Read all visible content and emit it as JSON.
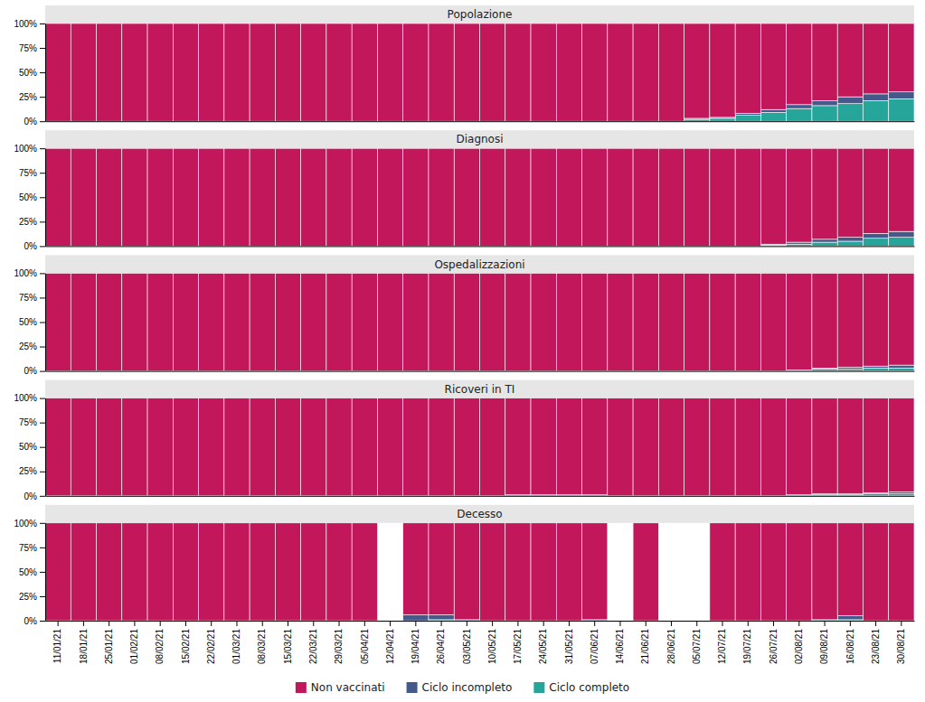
{
  "chart_data": [
    {
      "type": "bar",
      "title": "Popolazione",
      "stacked": true,
      "tick_labels": "y",
      "categories": [
        "11/01/21",
        "18/01/21",
        "25/01/21",
        "01/02/21",
        "08/02/21",
        "15/02/21",
        "22/02/21",
        "01/03/21",
        "08/03/21",
        "15/03/21",
        "22/03/21",
        "29/03/21",
        "05/04/21",
        "12/04/21",
        "19/04/21",
        "26/04/21",
        "03/05/21",
        "10/05/21",
        "17/05/21",
        "24/05/21",
        "31/05/21",
        "07/06/21",
        "14/06/21",
        "21/06/21",
        "28/06/21",
        "05/07/21",
        "12/07/21",
        "19/07/21",
        "26/07/21",
        "02/08/21",
        "09/08/21",
        "16/08/21",
        "23/08/21",
        "30/08/21"
      ],
      "series": [
        {
          "name": "Ciclo completo",
          "color": "#26A69A",
          "values": [
            0,
            0,
            0,
            0,
            0,
            0,
            0,
            0,
            0,
            0,
            0,
            0,
            0,
            0,
            0,
            0,
            0,
            0,
            0,
            0,
            0,
            0,
            0,
            0,
            0,
            2,
            3,
            6,
            9,
            13,
            16,
            18,
            21,
            23
          ]
        },
        {
          "name": "Ciclo incompleto",
          "color": "#455A8A",
          "values": [
            0,
            0,
            0,
            0,
            0,
            0,
            0,
            0,
            0,
            0,
            0,
            0,
            0,
            0,
            0,
            0,
            0,
            0,
            0,
            0,
            0,
            0,
            0,
            0,
            0,
            1,
            1,
            2,
            3,
            4,
            5,
            7,
            7,
            7
          ]
        },
        {
          "name": "Non vaccinati",
          "color": "#C2185B",
          "values": [
            100,
            100,
            100,
            100,
            100,
            100,
            100,
            100,
            100,
            100,
            100,
            100,
            100,
            100,
            100,
            100,
            100,
            100,
            100,
            100,
            100,
            100,
            100,
            100,
            100,
            97,
            96,
            92,
            88,
            83,
            79,
            75,
            72,
            70
          ]
        }
      ],
      "ylim": [
        0,
        100
      ],
      "yticks": [
        {
          "value": 0,
          "label": "0%"
        },
        {
          "value": 25,
          "label": "25%"
        },
        {
          "value": 50,
          "label": "50%"
        },
        {
          "value": 75,
          "label": "75%"
        },
        {
          "value": 100,
          "label": "100%"
        }
      ]
    },
    {
      "type": "bar",
      "title": "Diagnosi",
      "stacked": true,
      "tick_labels": "y",
      "categories": [
        "11/01/21",
        "18/01/21",
        "25/01/21",
        "01/02/21",
        "08/02/21",
        "15/02/21",
        "22/02/21",
        "01/03/21",
        "08/03/21",
        "15/03/21",
        "22/03/21",
        "29/03/21",
        "05/04/21",
        "12/04/21",
        "19/04/21",
        "26/04/21",
        "03/05/21",
        "10/05/21",
        "17/05/21",
        "24/05/21",
        "31/05/21",
        "07/06/21",
        "14/06/21",
        "21/06/21",
        "28/06/21",
        "05/07/21",
        "12/07/21",
        "19/07/21",
        "26/07/21",
        "02/08/21",
        "09/08/21",
        "16/08/21",
        "23/08/21",
        "30/08/21"
      ],
      "series": [
        {
          "name": "Ciclo completo",
          "color": "#26A69A",
          "values": [
            0,
            0,
            0,
            0,
            0,
            0,
            0,
            0,
            0,
            0,
            0,
            0,
            0,
            0,
            0,
            0,
            0,
            0,
            0,
            0,
            0,
            0,
            0,
            0,
            0,
            0,
            0,
            0,
            1,
            2,
            4,
            5,
            8,
            9
          ]
        },
        {
          "name": "Ciclo incompleto",
          "color": "#455A8A",
          "values": [
            0,
            0,
            0,
            0,
            0,
            0,
            0,
            0,
            0,
            0,
            0,
            0,
            0,
            0,
            0,
            0,
            0,
            0,
            0,
            0,
            0,
            0,
            0,
            0,
            0,
            0,
            0,
            0,
            1,
            2,
            3,
            4,
            5,
            6
          ]
        },
        {
          "name": "Non vaccinati",
          "color": "#C2185B",
          "values": [
            100,
            100,
            100,
            100,
            100,
            100,
            100,
            100,
            100,
            100,
            100,
            100,
            100,
            100,
            100,
            100,
            100,
            100,
            100,
            100,
            100,
            100,
            100,
            100,
            100,
            100,
            100,
            100,
            98,
            96,
            93,
            91,
            87,
            85
          ]
        }
      ],
      "ylim": [
        0,
        100
      ],
      "yticks": [
        {
          "value": 0,
          "label": "0%"
        },
        {
          "value": 25,
          "label": "25%"
        },
        {
          "value": 50,
          "label": "50%"
        },
        {
          "value": 75,
          "label": "75%"
        },
        {
          "value": 100,
          "label": "100%"
        }
      ]
    },
    {
      "type": "bar",
      "title": "Ospedalizzazioni",
      "stacked": true,
      "tick_labels": "y",
      "categories": [
        "11/01/21",
        "18/01/21",
        "25/01/21",
        "01/02/21",
        "08/02/21",
        "15/02/21",
        "22/02/21",
        "01/03/21",
        "08/03/21",
        "15/03/21",
        "22/03/21",
        "29/03/21",
        "05/04/21",
        "12/04/21",
        "19/04/21",
        "26/04/21",
        "03/05/21",
        "10/05/21",
        "17/05/21",
        "24/05/21",
        "31/05/21",
        "07/06/21",
        "14/06/21",
        "21/06/21",
        "28/06/21",
        "05/07/21",
        "12/07/21",
        "19/07/21",
        "26/07/21",
        "02/08/21",
        "09/08/21",
        "16/08/21",
        "23/08/21",
        "30/08/21"
      ],
      "series": [
        {
          "name": "Ciclo completo",
          "color": "#26A69A",
          "values": [
            0,
            0,
            0,
            0,
            0,
            0,
            0,
            0,
            0,
            0,
            0,
            0,
            0,
            0,
            0,
            0,
            0,
            0,
            0,
            0,
            0,
            0,
            0,
            0,
            0,
            0,
            0,
            0,
            0,
            1,
            2,
            2,
            3,
            3
          ]
        },
        {
          "name": "Ciclo incompleto",
          "color": "#455A8A",
          "values": [
            0,
            0,
            0,
            0,
            0,
            0,
            0,
            0,
            0,
            0,
            0,
            0,
            0,
            0,
            0,
            0,
            0,
            0,
            0,
            0,
            0,
            0,
            0,
            0,
            0,
            0,
            0,
            0,
            0,
            0,
            1,
            2,
            2,
            3
          ]
        },
        {
          "name": "Non vaccinati",
          "color": "#C2185B",
          "values": [
            100,
            100,
            100,
            100,
            100,
            100,
            100,
            100,
            100,
            100,
            100,
            100,
            100,
            100,
            100,
            100,
            100,
            100,
            100,
            100,
            100,
            100,
            100,
            100,
            100,
            100,
            100,
            100,
            100,
            99,
            97,
            96,
            95,
            94
          ]
        }
      ],
      "ylim": [
        0,
        100
      ],
      "yticks": [
        {
          "value": 0,
          "label": "0%"
        },
        {
          "value": 25,
          "label": "25%"
        },
        {
          "value": 50,
          "label": "50%"
        },
        {
          "value": 75,
          "label": "75%"
        },
        {
          "value": 100,
          "label": "100%"
        }
      ]
    },
    {
      "type": "bar",
      "title": "Ricoveri in TI",
      "stacked": true,
      "tick_labels": "y",
      "categories": [
        "11/01/21",
        "18/01/21",
        "25/01/21",
        "01/02/21",
        "08/02/21",
        "15/02/21",
        "22/02/21",
        "01/03/21",
        "08/03/21",
        "15/03/21",
        "22/03/21",
        "29/03/21",
        "05/04/21",
        "12/04/21",
        "19/04/21",
        "26/04/21",
        "03/05/21",
        "10/05/21",
        "17/05/21",
        "24/05/21",
        "31/05/21",
        "07/06/21",
        "14/06/21",
        "21/06/21",
        "28/06/21",
        "05/07/21",
        "12/07/21",
        "19/07/21",
        "26/07/21",
        "02/08/21",
        "09/08/21",
        "16/08/21",
        "23/08/21",
        "30/08/21"
      ],
      "series": [
        {
          "name": "Ciclo completo",
          "color": "#26A69A",
          "values": [
            0,
            0,
            0,
            0,
            0,
            0,
            0,
            0,
            0,
            0,
            0,
            0,
            0,
            0,
            0,
            0,
            0,
            0,
            0,
            0,
            0,
            0,
            0,
            0,
            0,
            0,
            0,
            0,
            0,
            1,
            1,
            1,
            2,
            2
          ]
        },
        {
          "name": "Ciclo incompleto",
          "color": "#455A8A",
          "values": [
            0,
            0,
            0,
            0,
            0,
            0,
            0,
            0,
            0,
            0,
            0,
            0,
            0,
            0,
            0,
            0,
            0,
            0,
            1,
            1,
            1,
            1,
            0,
            0,
            0,
            0,
            0,
            0,
            0,
            0,
            1,
            1,
            1,
            2
          ]
        },
        {
          "name": "Non vaccinati",
          "color": "#C2185B",
          "values": [
            100,
            100,
            100,
            100,
            100,
            100,
            100,
            100,
            100,
            100,
            100,
            100,
            100,
            100,
            100,
            100,
            100,
            100,
            99,
            99,
            99,
            99,
            100,
            100,
            100,
            100,
            100,
            100,
            100,
            99,
            98,
            98,
            97,
            96
          ]
        }
      ],
      "ylim": [
        0,
        100
      ],
      "yticks": [
        {
          "value": 0,
          "label": "0%"
        },
        {
          "value": 25,
          "label": "25%"
        },
        {
          "value": 50,
          "label": "50%"
        },
        {
          "value": 75,
          "label": "75%"
        },
        {
          "value": 100,
          "label": "100%"
        }
      ]
    },
    {
      "type": "bar",
      "title": "Decesso",
      "stacked": true,
      "legend": "bottom",
      "categories": [
        "11/01/21",
        "18/01/21",
        "25/01/21",
        "01/02/21",
        "08/02/21",
        "15/02/21",
        "22/02/21",
        "01/03/21",
        "08/03/21",
        "15/03/21",
        "22/03/21",
        "29/03/21",
        "05/04/21",
        "12/04/21",
        "19/04/21",
        "26/04/21",
        "03/05/21",
        "10/05/21",
        "17/05/21",
        "24/05/21",
        "31/05/21",
        "07/06/21",
        "14/06/21",
        "21/06/21",
        "28/06/21",
        "05/07/21",
        "12/07/21",
        "19/07/21",
        "26/07/21",
        "02/08/21",
        "09/08/21",
        "16/08/21",
        "23/08/21",
        "30/08/21"
      ],
      "series": [
        {
          "name": "Ciclo completo",
          "color": "#26A69A",
          "values": [
            0,
            0,
            0,
            0,
            0,
            0,
            0,
            0,
            0,
            0,
            0,
            0,
            0,
            0,
            0,
            1,
            0,
            0,
            0,
            0,
            0,
            0,
            0,
            0,
            0,
            0,
            0,
            0,
            0,
            0,
            1,
            1,
            0,
            0
          ]
        },
        {
          "name": "Ciclo incompleto",
          "color": "#455A8A",
          "values": [
            0,
            0,
            0,
            0,
            0,
            0,
            0,
            0,
            0,
            0,
            0,
            0,
            0,
            0,
            6,
            5,
            1,
            0,
            0,
            0,
            0,
            1,
            0,
            0,
            0,
            0,
            0,
            0,
            0,
            0,
            0,
            4,
            0,
            0
          ]
        },
        {
          "name": "Non vaccinati",
          "color": "#C2185B",
          "values": [
            100,
            100,
            100,
            100,
            100,
            100,
            100,
            100,
            100,
            100,
            100,
            100,
            100,
            0,
            94,
            94,
            99,
            100,
            100,
            100,
            100,
            99,
            0,
            100,
            0,
            0,
            100,
            100,
            100,
            100,
            99,
            95,
            100,
            100
          ]
        }
      ],
      "ylim": [
        0,
        100
      ],
      "yticks": [
        {
          "value": 0,
          "label": "0%"
        },
        {
          "value": 25,
          "label": "25%"
        },
        {
          "value": 50,
          "label": "50%"
        },
        {
          "value": 75,
          "label": "75%"
        },
        {
          "value": 100,
          "label": "100%"
        }
      ]
    }
  ]
}
